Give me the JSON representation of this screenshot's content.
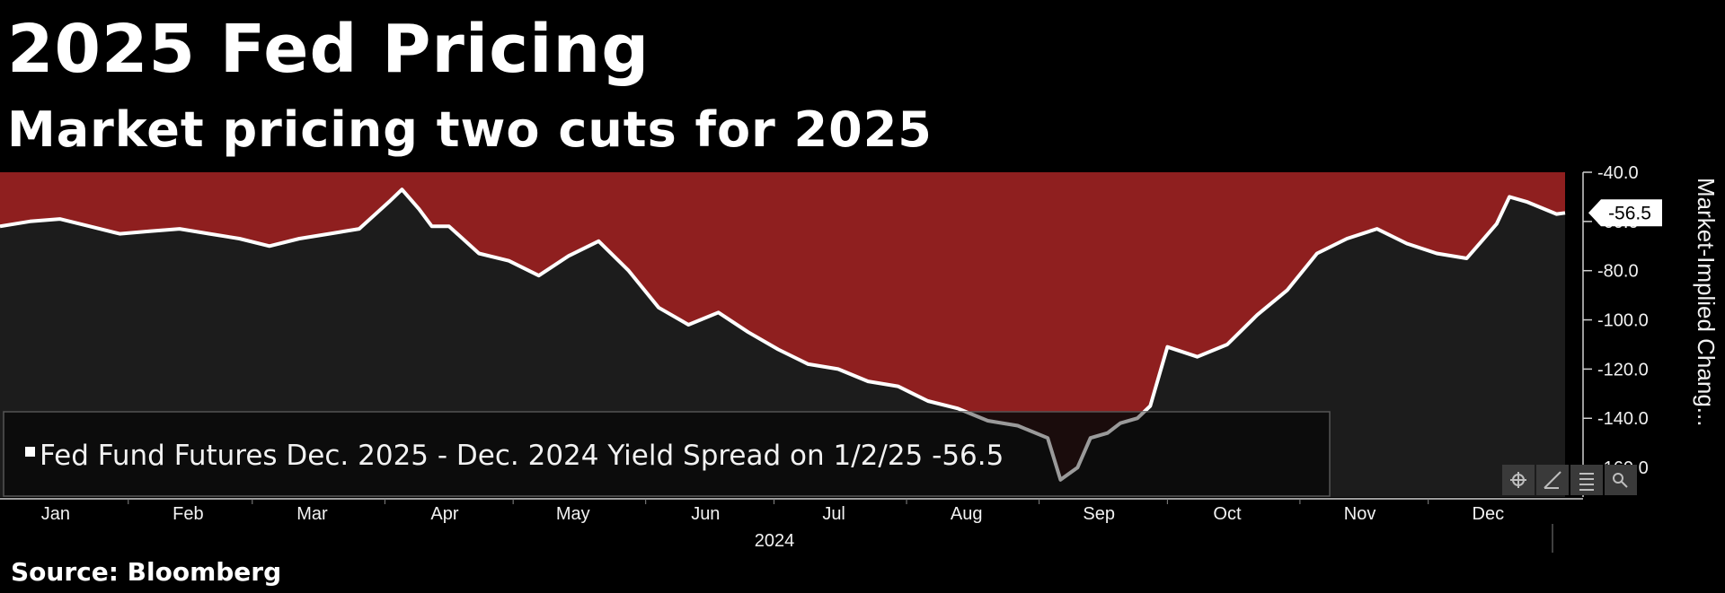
{
  "title": "2025 Fed Pricing",
  "subtitle": "Market pricing two cuts for 2025",
  "source": "Source: Bloomberg",
  "colors": {
    "background": "#000000",
    "plot_background": "#1c1c1c",
    "fill_above_line": "#8f1f1f",
    "line": "#ffffff",
    "line_below_range": "#9a9a9a"
  },
  "toolbar_icons": [
    "crosshair-icon",
    "draw-icon",
    "legend-icon",
    "zoom-icon"
  ],
  "chart_data": {
    "type": "line",
    "title": "2025 Fed Pricing",
    "subtitle": "Market pricing two cuts for 2025",
    "ylabel": "Market-Implied Chang...",
    "xlabel": "2024",
    "ylim": [
      -172,
      -40
    ],
    "yticks": [
      "-40.0",
      "-60.0",
      "-80.0",
      "-100.0",
      "-120.0",
      "-140.0",
      "-160.0"
    ],
    "ytick_values": [
      -40,
      -60,
      -80,
      -100,
      -120,
      -140,
      -160
    ],
    "x_month_labels": [
      "Jan",
      "Feb",
      "Mar",
      "Apr",
      "May",
      "Jun",
      "Jul",
      "Aug",
      "Sep",
      "Oct",
      "Nov",
      "Dec"
    ],
    "x_year_label": "2024",
    "x_range": [
      "2024-01-02",
      "2025-01-02"
    ],
    "last_value_label": "-56.5",
    "legend": "Fed Fund Futures Dec. 2025 - Dec. 2024 Yield Spread on 1/2/25 -56.5",
    "grid": false,
    "series": [
      {
        "name": "Fed Fund Futures Dec. 2025 - Dec. 2024 Yield Spread on 1/2/25",
        "x": [
          "2024-01-02",
          "2024-01-09",
          "2024-01-16",
          "2024-01-23",
          "2024-01-30",
          "2024-02-06",
          "2024-02-13",
          "2024-02-20",
          "2024-02-27",
          "2024-03-05",
          "2024-03-12",
          "2024-03-19",
          "2024-03-26",
          "2024-04-02",
          "2024-04-05",
          "2024-04-09",
          "2024-04-12",
          "2024-04-16",
          "2024-04-23",
          "2024-04-30",
          "2024-05-07",
          "2024-05-14",
          "2024-05-21",
          "2024-05-28",
          "2024-06-04",
          "2024-06-11",
          "2024-06-18",
          "2024-06-25",
          "2024-07-02",
          "2024-07-09",
          "2024-07-16",
          "2024-07-23",
          "2024-07-30",
          "2024-08-06",
          "2024-08-13",
          "2024-08-20",
          "2024-08-27",
          "2024-09-03",
          "2024-09-06",
          "2024-09-10",
          "2024-09-13",
          "2024-09-17",
          "2024-09-20",
          "2024-09-24",
          "2024-09-27",
          "2024-10-01",
          "2024-10-08",
          "2024-10-15",
          "2024-10-22",
          "2024-10-29",
          "2024-11-05",
          "2024-11-12",
          "2024-11-19",
          "2024-11-26",
          "2024-12-03",
          "2024-12-10",
          "2024-12-17",
          "2024-12-20",
          "2024-12-24",
          "2024-12-31",
          "2025-01-02"
        ],
        "values": [
          -62,
          -60,
          -59,
          -62,
          -65,
          -64,
          -63,
          -65,
          -67,
          -70,
          -67,
          -65,
          -63,
          -52,
          -47,
          -55,
          -62,
          -62,
          -73,
          -76,
          -82,
          -74,
          -68,
          -80,
          -95,
          -102,
          -97,
          -105,
          -112,
          -118,
          -120,
          -125,
          -127,
          -133,
          -136,
          -141,
          -143,
          -148,
          -165,
          -160,
          -148,
          -146,
          -142,
          -140,
          -135,
          -111,
          -115,
          -110,
          -98,
          -88,
          -73,
          -67,
          -63,
          -69,
          -73,
          -75,
          -61,
          -50,
          -52,
          -57,
          -56.5
        ]
      }
    ]
  }
}
